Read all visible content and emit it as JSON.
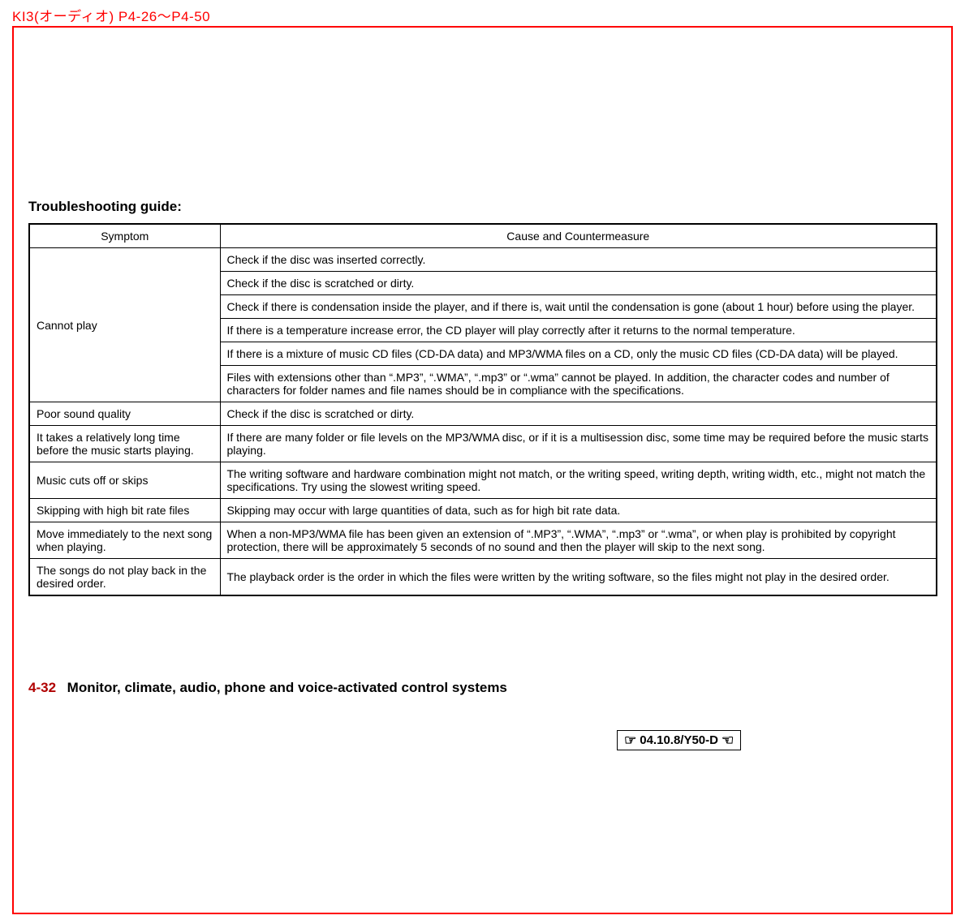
{
  "page_ref": "KI3(オーディオ) P4-26～P4-50",
  "section_heading": "Troubleshooting guide:",
  "table": {
    "headers": {
      "symptom": "Symptom",
      "cause": "Cause and Countermeasure"
    },
    "rows": [
      {
        "symptom": "Cannot play",
        "rowspan": 6,
        "cause": "Check if the disc was inserted correctly."
      },
      {
        "cause": "Check if the disc is scratched or dirty."
      },
      {
        "cause": "Check if there is condensation inside the player, and if there is, wait until the condensation is gone (about 1 hour) before using the player."
      },
      {
        "cause": "If there is a temperature increase error, the CD player will play correctly after it returns to the normal temperature."
      },
      {
        "cause": "If there is a mixture of music CD files (CD-DA data) and MP3/WMA files on a CD, only the music CD files (CD-DA data) will be played."
      },
      {
        "cause": "Files with extensions other than “.MP3”, “.WMA”, “.mp3” or “.wma” cannot be played. In addition, the character codes and number of characters for folder names and file names should be in compliance with the specifications."
      },
      {
        "symptom": "Poor sound quality",
        "rowspan": 1,
        "cause": "Check if the disc is scratched or dirty."
      },
      {
        "symptom": "It takes a relatively long time before the music starts playing.",
        "rowspan": 1,
        "cause": "If there are many folder or file levels on the MP3/WMA disc, or if it is a multisession disc, some time may be required before the music starts playing."
      },
      {
        "symptom": "Music cuts off or skips",
        "rowspan": 1,
        "cause": "The writing software and hardware combination might not match, or the writing speed, writing depth, writing width, etc., might not match the specifications. Try using the slowest writing speed."
      },
      {
        "symptom": "Skipping with high bit rate files",
        "rowspan": 1,
        "cause": "Skipping may occur with large quantities of data, such as for high bit rate data."
      },
      {
        "symptom": "Move immediately to the next song when playing.",
        "rowspan": 1,
        "cause": "When a non-MP3/WMA file has been given an extension of “.MP3”, “.WMA”, “.mp3” or “.wma”, or when play is prohibited by copyright protection, there will be approximately 5 seconds of no sound and then the player will skip to the next song."
      },
      {
        "symptom": "The songs do not play back in the desired order.",
        "rowspan": 1,
        "cause": "The playback order is the order in which the files were written by the writing software, so the files might not play in the desired order."
      }
    ]
  },
  "footer": {
    "page_number": "4-32",
    "footer_text": "Monitor, climate, audio, phone and voice-activated control systems",
    "date_box": "04.10.8/Y50-D"
  },
  "colors": {
    "red": "#ff0000",
    "black": "#000000",
    "dark_red": "#b00000",
    "background": "#ffffff"
  },
  "typography": {
    "body_fontsize": 14,
    "heading_fontsize": 17,
    "footer_fontsize": 17
  }
}
